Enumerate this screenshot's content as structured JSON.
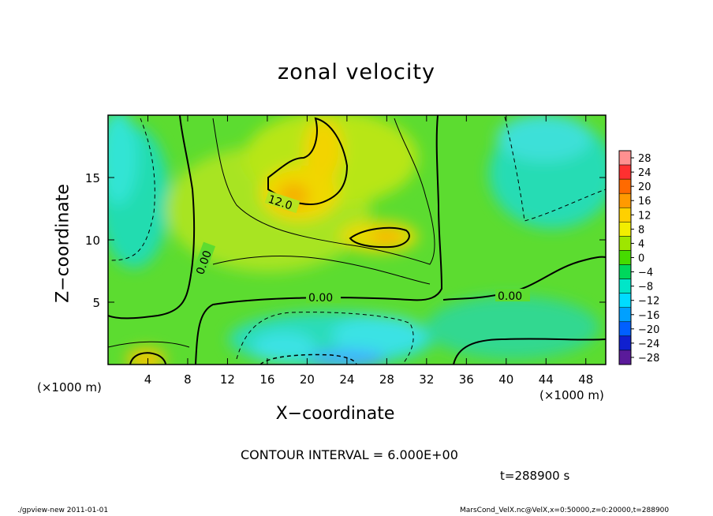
{
  "chart_data": {
    "type": "heatmap",
    "title": "zonal velocity",
    "xlabel": "X−coordinate",
    "ylabel": "Z−coordinate",
    "x_unit_left": "(×1000 m)",
    "x_unit_right": "(×1000 m)",
    "xlim": [
      0,
      50
    ],
    "ylim": [
      0,
      20
    ],
    "x_ticks": [
      "4",
      "8",
      "12",
      "16",
      "20",
      "24",
      "28",
      "32",
      "36",
      "40",
      "44",
      "48"
    ],
    "x_tick_values": [
      4,
      8,
      12,
      16,
      20,
      24,
      28,
      32,
      36,
      40,
      44,
      48
    ],
    "y_ticks": [
      "5",
      "10",
      "15"
    ],
    "y_tick_values": [
      5,
      10,
      15
    ],
    "colorbar": {
      "labels": [
        "28",
        "24",
        "20",
        "16",
        "12",
        "8",
        "4",
        "0",
        "−4",
        "−8",
        "−12",
        "−16",
        "−20",
        "−24",
        "−28"
      ],
      "values": [
        28,
        24,
        20,
        16,
        12,
        8,
        4,
        0,
        -4,
        -8,
        -12,
        -16,
        -20,
        -24,
        -28
      ],
      "colors": [
        "#ff9090",
        "#ff3030",
        "#ff6a00",
        "#ff9a00",
        "#ffd000",
        "#f2ee00",
        "#9ee600",
        "#46dc00",
        "#00d85c",
        "#00e6c8",
        "#00dcff",
        "#00a0ff",
        "#0060ff",
        "#1020d0",
        "#5a1a9a"
      ]
    },
    "contour_labels": [
      "12.0",
      "0.00",
      "0.00",
      "0.00"
    ],
    "contour_interval_text": "CONTOUR INTERVAL = 6.000E+00",
    "time_text": "t=288900 s"
  },
  "footer": {
    "left": "./gpview-new  2011-01-01",
    "right": "MarsCond_VelX.nc@VelX,x=0:50000,z=0:20000,t=288900"
  }
}
